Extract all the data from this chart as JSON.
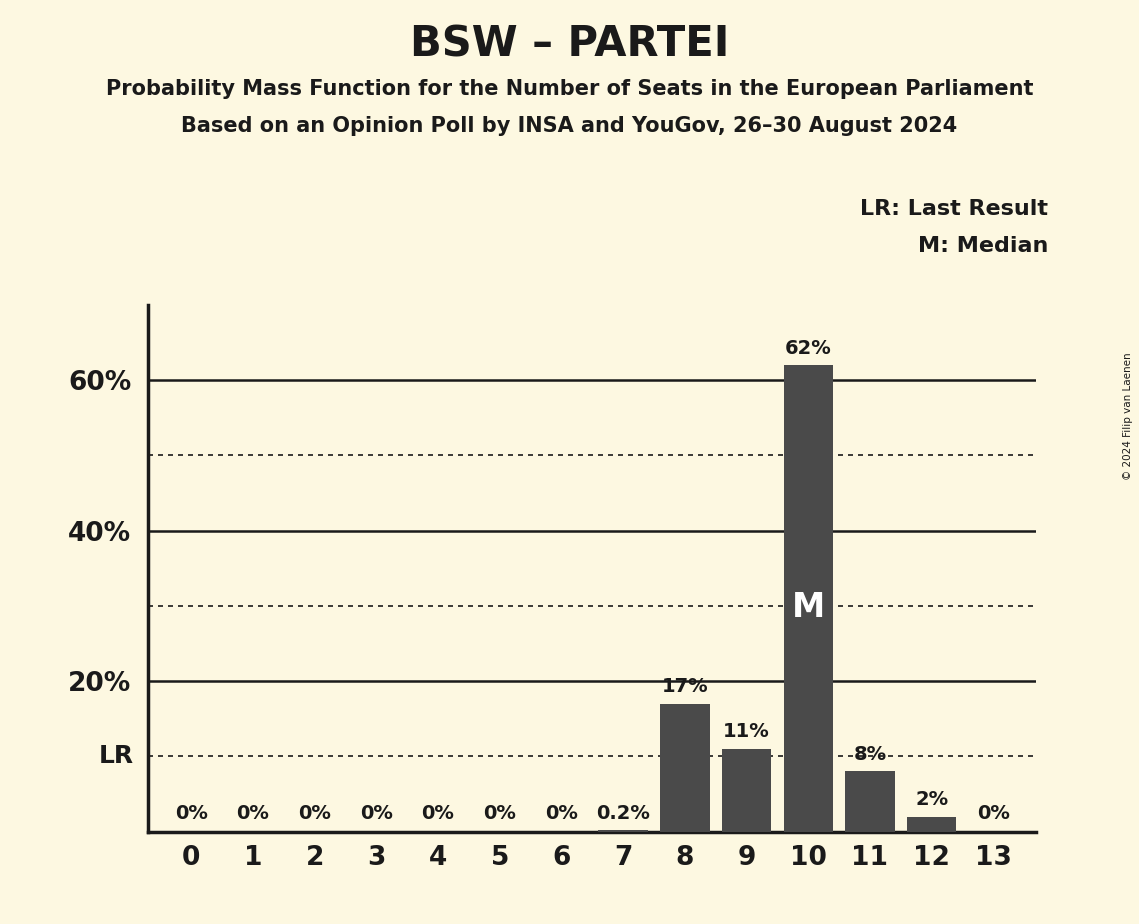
{
  "title": "BSW – PARTEI",
  "subtitle1": "Probability Mass Function for the Number of Seats in the European Parliament",
  "subtitle2": "Based on an Opinion Poll by INSA and YouGov, 26–30 August 2024",
  "copyright": "© 2024 Filip van Laenen",
  "categories": [
    0,
    1,
    2,
    3,
    4,
    5,
    6,
    7,
    8,
    9,
    10,
    11,
    12,
    13
  ],
  "values": [
    0,
    0,
    0,
    0,
    0,
    0,
    0,
    0.2,
    17,
    11,
    62,
    8,
    2,
    0
  ],
  "bar_color": "#4a4a4a",
  "background_color": "#fdf8e1",
  "text_color": "#1a1a1a",
  "ylim": [
    0,
    70
  ],
  "yticks_solid": [
    20,
    40,
    60
  ],
  "yticks_dotted": [
    10,
    30,
    50
  ],
  "lr_level": 10,
  "median_bar": 10,
  "legend_lr": "LR: Last Result",
  "legend_m": "M: Median",
  "bar_labels": [
    "0%",
    "0%",
    "0%",
    "0%",
    "0%",
    "0%",
    "0%",
    "0.2%",
    "17%",
    "11%",
    "62%",
    "8%",
    "2%",
    "0%"
  ],
  "title_fontsize": 30,
  "subtitle_fontsize": 15,
  "tick_fontsize": 19,
  "label_fontsize": 14,
  "legend_fontsize": 16,
  "m_fontsize": 24
}
